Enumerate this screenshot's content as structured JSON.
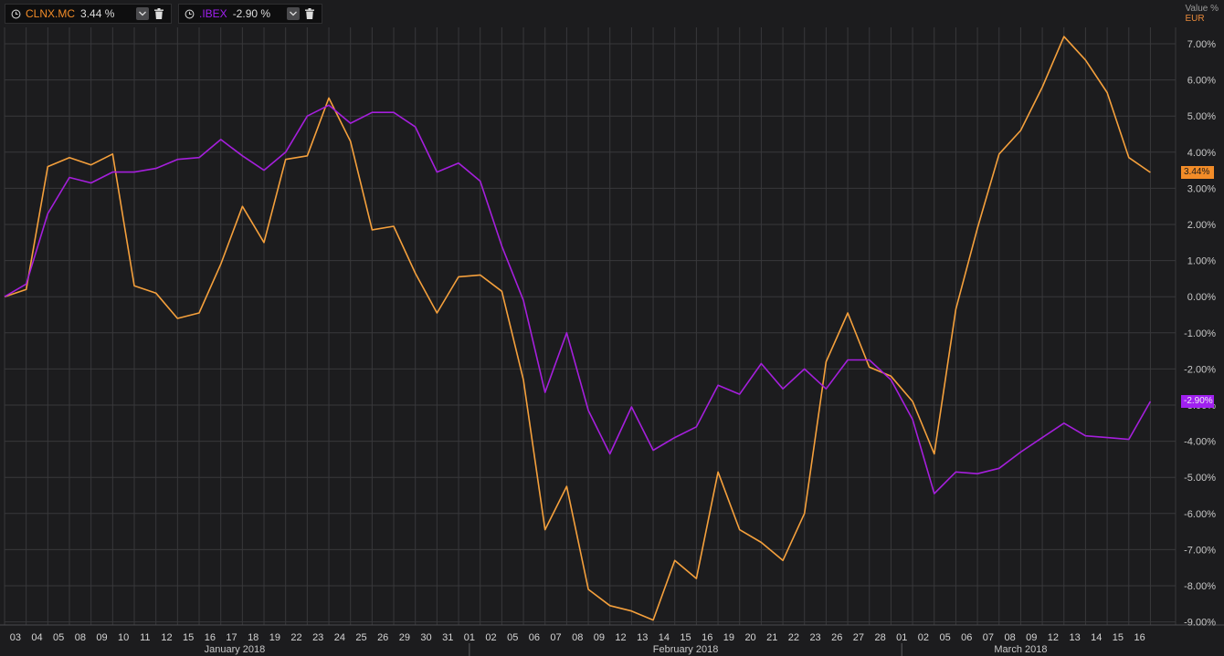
{
  "legend": [
    {
      "name": "CLNX.MC",
      "value": "3.44 %",
      "color": "#f28c28"
    },
    {
      "name": ".IBEX",
      "value": "-2.90 %",
      "color": "#a020f0"
    }
  ],
  "axis": {
    "title": "Value %",
    "unit": "EUR"
  },
  "last_labels": {
    "clnx": "3.44%",
    "ibex": "-2.90%"
  },
  "colors": {
    "clnx": "#f5a03c",
    "ibex": "#a51fdc",
    "grid": "#38383b",
    "background": "#1c1c1e"
  },
  "chart_data": {
    "type": "line",
    "ylim": [
      -9,
      7.5
    ],
    "y_ticks": [
      "7.00%",
      "6.00%",
      "5.00%",
      "4.00%",
      "3.00%",
      "2.00%",
      "1.00%",
      "0.00%",
      "-1.00%",
      "-2.00%",
      "-3.00%",
      "-4.00%",
      "-5.00%",
      "-6.00%",
      "-7.00%",
      "-8.00%",
      "-9.00%"
    ],
    "y_tick_values": [
      7,
      6,
      5,
      4,
      3,
      2,
      1,
      0,
      -1,
      -2,
      -3,
      -4,
      -5,
      -6,
      -7,
      -8,
      -9
    ],
    "x": [
      "",
      "03",
      "04",
      "05",
      "08",
      "09",
      "10",
      "11",
      "12",
      "15",
      "16",
      "17",
      "18",
      "19",
      "22",
      "23",
      "24",
      "25",
      "26",
      "29",
      "30",
      "31",
      "01",
      "02",
      "05",
      "06",
      "07",
      "08",
      "09",
      "12",
      "13",
      "14",
      "15",
      "16",
      "19",
      "20",
      "21",
      "22",
      "23",
      "26",
      "27",
      "28",
      "01",
      "02",
      "05",
      "06",
      "07",
      "08",
      "09",
      "12",
      "13",
      "14",
      "15",
      "16"
    ],
    "months": [
      {
        "label": "January 2018",
        "start": 0,
        "end": 22
      },
      {
        "label": "February 2018",
        "start": 22,
        "end": 42
      },
      {
        "label": "March 2018",
        "start": 42,
        "end": 53
      }
    ],
    "series": [
      {
        "name": "CLNX.MC",
        "values": [
          0,
          0.2,
          3.6,
          3.85,
          3.65,
          3.95,
          0.3,
          0.1,
          -0.6,
          -0.45,
          0.9,
          2.5,
          1.5,
          3.8,
          3.9,
          5.5,
          4.3,
          1.85,
          1.95,
          0.65,
          -0.45,
          0.55,
          0.6,
          0.15,
          -2.3,
          -6.45,
          -5.25,
          -8.1,
          -8.55,
          -8.7,
          -8.95,
          -7.3,
          -7.8,
          -4.85,
          -6.45,
          -6.8,
          -7.3,
          -6,
          -1.8,
          -0.45,
          -1.95,
          -2.2,
          -2.9,
          -4.35,
          -0.35,
          1.9,
          3.95,
          4.6,
          5.8,
          7.2,
          6.55,
          5.65,
          3.85,
          3.44
        ]
      },
      {
        "name": ".IBEX",
        "values": [
          0,
          0.35,
          2.3,
          3.3,
          3.15,
          3.45,
          3.45,
          3.55,
          3.8,
          3.85,
          4.35,
          3.9,
          3.5,
          4,
          5,
          5.3,
          4.8,
          5.1,
          5.1,
          4.7,
          3.45,
          3.7,
          3.2,
          1.4,
          -0.1,
          -2.65,
          -1,
          -3.15,
          -4.35,
          -3.05,
          -4.25,
          -3.9,
          -3.6,
          -2.45,
          -2.7,
          -1.85,
          -2.55,
          -2,
          -2.55,
          -1.75,
          -1.75,
          -2.3,
          -3.4,
          -5.45,
          -4.85,
          -4.9,
          -4.75,
          -4.3,
          -3.9,
          -3.5,
          -3.85,
          -3.9,
          -3.95,
          -2.9
        ]
      }
    ]
  }
}
